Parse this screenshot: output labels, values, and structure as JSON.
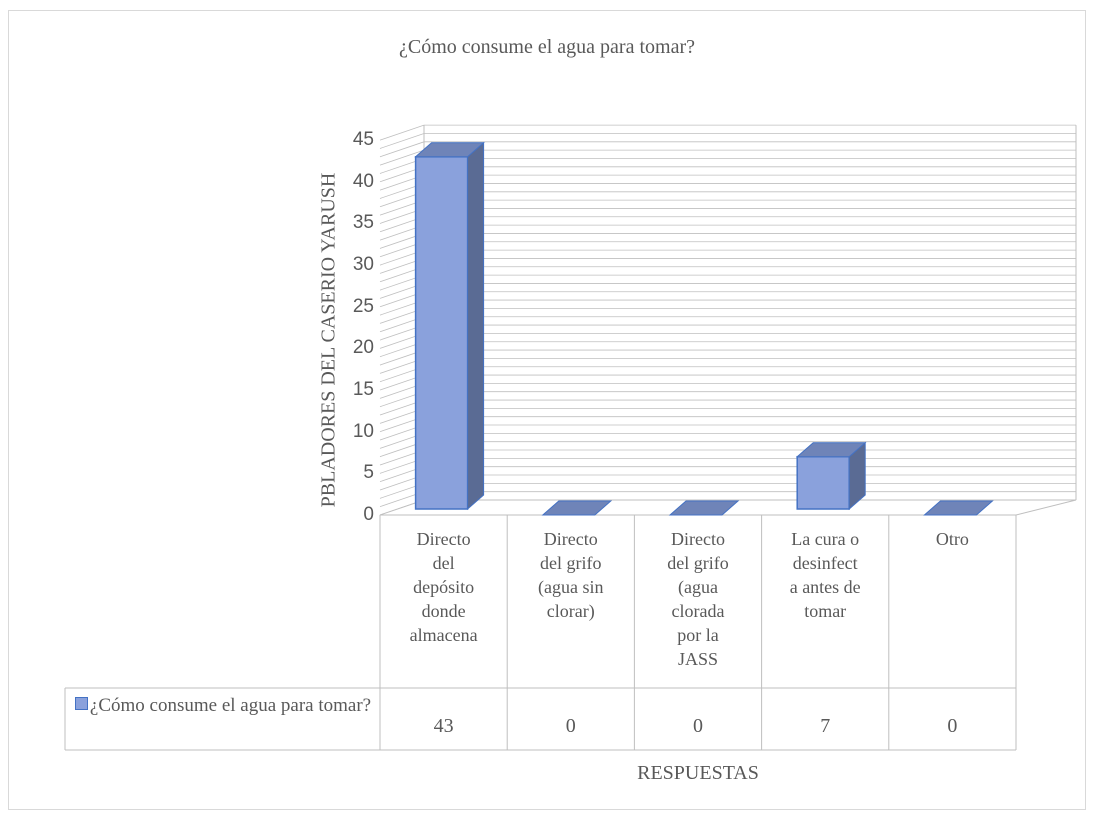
{
  "chart_data": {
    "type": "bar",
    "title": "¿Cómo consume el agua para tomar?",
    "ylabel": "PBLADORES DEL CASERIO YARUSH",
    "xlabel": "RESPUESTAS",
    "ylim": [
      0,
      45
    ],
    "yticks": [
      "0",
      "5",
      "10",
      "15",
      "20",
      "25",
      "30",
      "35",
      "40",
      "45"
    ],
    "categories": [
      [
        "Directo",
        "del",
        "depósito",
        "donde",
        "almacena"
      ],
      [
        "Directo",
        "del grifo",
        "(agua sin",
        "clorar)"
      ],
      [
        "Directo",
        "del grifo",
        "(agua",
        "clorada",
        "por la",
        "JASS"
      ],
      [
        "La cura o",
        "desinfect",
        "a antes de",
        "tomar"
      ],
      [
        "Otro"
      ]
    ],
    "series": [
      {
        "name": "¿Cómo consume el agua para tomar?",
        "values": [
          43,
          0,
          0,
          7,
          0
        ]
      }
    ],
    "value_labels": [
      "43",
      "0",
      "0",
      "7",
      "0"
    ],
    "legend": "data-table",
    "grid": true,
    "colors": {
      "bar_front": "#8aa1dc",
      "bar_side": "#5a6b94",
      "bar_top": "#6f84b8",
      "bar_edge": "#4472c4",
      "grid": "#bfbfbf",
      "text": "#595959"
    }
  }
}
